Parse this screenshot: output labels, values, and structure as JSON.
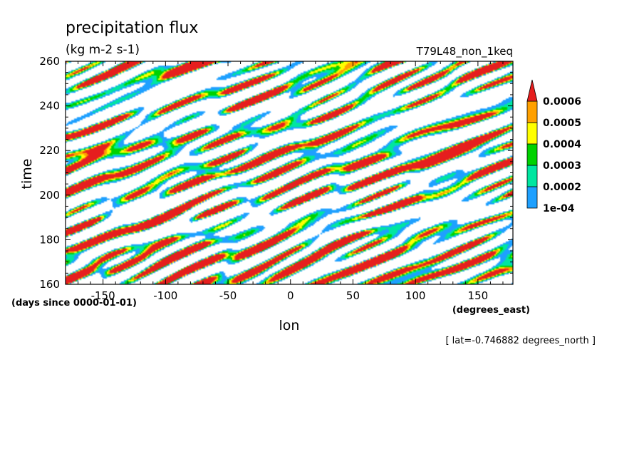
{
  "chart_data": {
    "type": "heatmap",
    "title": "precipitation flux",
    "units_label": "(kg m-2 s-1)",
    "run_label": "T79L48_non_1keq",
    "xlabel": "lon",
    "ylabel": "time",
    "x_units": "(degrees_east)",
    "y_units": "(days since 0000-01-01)",
    "section_label": "[ lat=-0.746882 degrees_north ]",
    "xlim": [
      -180,
      178
    ],
    "ylim": [
      160,
      260
    ],
    "x_ticks": [
      -150,
      -100,
      -50,
      0,
      50,
      100,
      150
    ],
    "y_ticks": [
      160,
      180,
      200,
      220,
      240,
      260
    ],
    "legend": {
      "placement": "right",
      "levels": [
        "1e-04",
        "0.0002",
        "0.0003",
        "0.0004",
        "0.0005",
        "0.0006"
      ],
      "colors": [
        "#1ea0ff",
        "#00e6a0",
        "#00d200",
        "#ffff00",
        "#ffa000",
        "#e61e1e"
      ]
    }
  }
}
